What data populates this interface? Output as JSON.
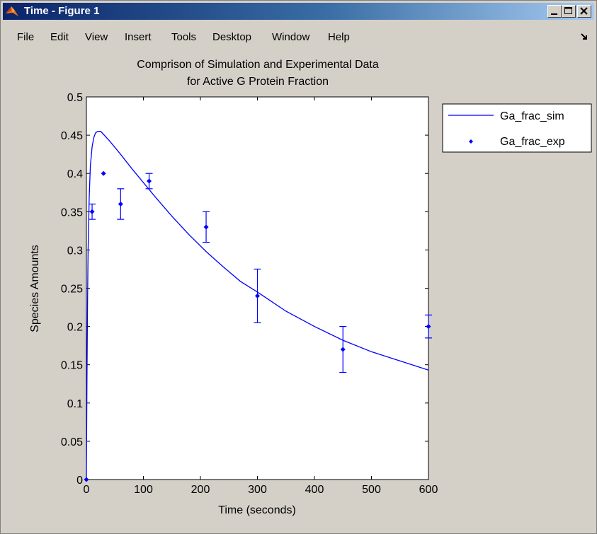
{
  "window": {
    "title": "Time - Figure 1",
    "icon": "matlab-logo-icon"
  },
  "menu": {
    "items": [
      "File",
      "Edit",
      "View",
      "Insert",
      "Tools",
      "Desktop",
      "Window",
      "Help"
    ],
    "dock_icon": "dock-arrow-icon"
  },
  "chart_data": {
    "type": "line",
    "title": "Comprison of Simulation and Experimental Data",
    "subtitle": "for Active G Protein Fraction",
    "xlabel": "Time (seconds)",
    "ylabel": "Species Amounts",
    "xlim": [
      0,
      600
    ],
    "ylim": [
      0,
      0.5
    ],
    "xticks": [
      0,
      100,
      200,
      300,
      400,
      500,
      600
    ],
    "xtick_labels": [
      "0",
      "100",
      "200",
      "300",
      "400",
      "500",
      "600"
    ],
    "yticks": [
      0,
      0.05,
      0.1,
      0.15,
      0.2,
      0.25,
      0.3,
      0.35,
      0.4,
      0.45,
      0.5
    ],
    "ytick_labels": [
      "0",
      "0.05",
      "0.1",
      "0.15",
      "0.2",
      "0.25",
      "0.3",
      "0.35",
      "0.4",
      "0.45",
      "0.5"
    ],
    "grid": false,
    "legend_position": "outside-top-right",
    "color": "#0000ff",
    "series": [
      {
        "name": "Ga_frac_sim",
        "kind": "line",
        "x": [
          0,
          1,
          2,
          3,
          5,
          7,
          10,
          13,
          16,
          20,
          25,
          30,
          40,
          50,
          60,
          80,
          100,
          120,
          150,
          180,
          210,
          240,
          270,
          300,
          350,
          400,
          450,
          500,
          550,
          600
        ],
        "y": [
          0,
          0.13,
          0.23,
          0.3,
          0.37,
          0.41,
          0.435,
          0.447,
          0.453,
          0.455,
          0.455,
          0.451,
          0.443,
          0.434,
          0.425,
          0.406,
          0.388,
          0.37,
          0.344,
          0.32,
          0.298,
          0.278,
          0.259,
          0.245,
          0.22,
          0.2,
          0.182,
          0.167,
          0.155,
          0.143
        ]
      },
      {
        "name": "Ga_frac_exp",
        "kind": "errorbar",
        "x": [
          0,
          10,
          30,
          60,
          110,
          210,
          300,
          450,
          600
        ],
        "y": [
          0,
          0.35,
          0.4,
          0.36,
          0.39,
          0.33,
          0.24,
          0.17,
          0.2
        ],
        "err": [
          0,
          0.01,
          0,
          0.02,
          0.01,
          0.02,
          0.035,
          0.03,
          0.015
        ]
      }
    ]
  }
}
